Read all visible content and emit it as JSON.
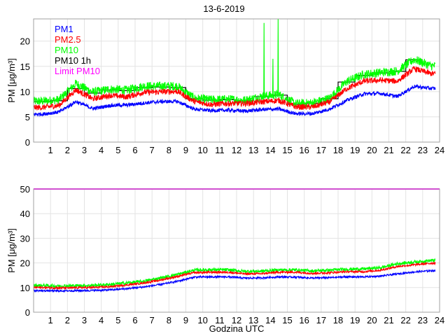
{
  "chart_data": [
    {
      "type": "line",
      "title": "13-6-2019",
      "xlabel": "",
      "ylabel": "PM [μg/m³]",
      "xlim": [
        0,
        24
      ],
      "ylim": [
        0,
        24.4
      ],
      "xticks": [
        1,
        2,
        3,
        4,
        5,
        6,
        7,
        8,
        9,
        10,
        11,
        12,
        13,
        14,
        15,
        16,
        17,
        18,
        19,
        20,
        21,
        22,
        23,
        24
      ],
      "yticks": [
        0,
        5,
        10,
        15,
        20
      ],
      "grid": true,
      "legend_position": "top-left",
      "legend": [
        {
          "label": "PM1",
          "color": "#0000ff"
        },
        {
          "label": "PM2.5",
          "color": "#ff0000"
        },
        {
          "label": "PM10",
          "color": "#00ff00"
        },
        {
          "label": "PM10 1h",
          "color": "#000000"
        },
        {
          "label": "Limit PM10",
          "color": "#ff00ff"
        }
      ],
      "x_hour_midpoints": [
        0.5,
        1.5,
        2.5,
        3.5,
        4.5,
        5.5,
        6.5,
        7.5,
        8.5,
        9.5,
        10.5,
        11.5,
        12.5,
        13.5,
        14.5,
        15.5,
        16.5,
        17.5,
        18.5,
        19.5,
        20.5,
        21.5,
        22.5,
        23.5
      ],
      "x_end": 23.75,
      "series": [
        {
          "name": "PM10",
          "color": "#00ff00",
          "noise": 1.1,
          "values": [
            8.0,
            8.3,
            11.5,
            9.8,
            10.4,
            10.2,
            11.0,
            11.0,
            11.0,
            8.6,
            8.3,
            8.4,
            8.2,
            9.0,
            9.3,
            7.5,
            7.7,
            8.6,
            11.9,
            13.3,
            13.7,
            14.0,
            16.3,
            15.0
          ],
          "spikes": [
            [
              13.62,
              23.6
            ],
            [
              14.45,
              24.4
            ],
            [
              14.15,
              16.5
            ]
          ]
        },
        {
          "name": "PM2.5",
          "color": "#ff0000",
          "noise": 0.7,
          "values": [
            6.8,
            7.2,
            10.3,
            8.5,
            9.2,
            8.9,
            9.8,
            9.9,
            10.0,
            8.0,
            7.4,
            7.6,
            7.6,
            7.9,
            8.2,
            6.9,
            6.9,
            7.9,
            10.5,
            12.0,
            12.2,
            12.0,
            14.5,
            13.5
          ]
        },
        {
          "name": "PM1",
          "color": "#0000ff",
          "noise": 0.45,
          "values": [
            5.5,
            5.9,
            8.0,
            6.6,
            7.2,
            7.3,
            7.7,
            8.0,
            8.0,
            6.5,
            6.2,
            6.3,
            6.1,
            6.4,
            6.5,
            5.6,
            5.6,
            6.5,
            8.2,
            9.5,
            9.6,
            9.0,
            11.0,
            10.6
          ]
        }
      ],
      "pm10_1h": {
        "name": "PM10 1h",
        "color": "#000000",
        "hourly_values": [
          8.0,
          8.2,
          10.6,
          9.7,
          10.3,
          10.2,
          10.8,
          10.9,
          10.8,
          8.6,
          8.3,
          8.4,
          8.2,
          9.0,
          9.3,
          7.5,
          7.7,
          8.6,
          11.9,
          13.2,
          13.7,
          14.0,
          16.3
        ]
      }
    },
    {
      "type": "line",
      "title": "",
      "xlabel": "Godzina UTC",
      "ylabel": "PM [μg/m³]",
      "xlim": [
        0,
        24
      ],
      "ylim": [
        0,
        50
      ],
      "xticks": [
        1,
        2,
        3,
        4,
        5,
        6,
        7,
        8,
        9,
        10,
        11,
        12,
        13,
        14,
        15,
        16,
        17,
        18,
        19,
        20,
        21,
        22,
        23,
        24
      ],
      "yticks": [
        0,
        10,
        20,
        30,
        40,
        50
      ],
      "grid": true,
      "x_hour_midpoints": [
        0.5,
        1.5,
        2.5,
        3.5,
        4.5,
        5.5,
        6.5,
        7.5,
        8.5,
        9.5,
        10.5,
        11.5,
        12.5,
        13.5,
        14.5,
        15.5,
        16.5,
        17.5,
        18.5,
        19.5,
        20.5,
        21.5,
        22.5,
        23.5
      ],
      "x_end": 23.75,
      "series": [
        {
          "name": "PM10",
          "color": "#00ff00",
          "noise": 0.8,
          "values": [
            10.8,
            10.6,
            10.7,
            10.8,
            11.2,
            11.8,
            12.5,
            13.8,
            15.3,
            17.0,
            17.2,
            17.1,
            16.5,
            16.6,
            17.1,
            17.1,
            16.7,
            17.0,
            17.4,
            17.5,
            18.0,
            19.6,
            20.3,
            20.9
          ]
        },
        {
          "name": "PM2.5",
          "color": "#ff0000",
          "noise": 0.5,
          "values": [
            10.0,
            9.8,
            9.9,
            10.0,
            10.3,
            11.0,
            11.8,
            13.0,
            14.5,
            16.0,
            16.2,
            16.2,
            15.5,
            15.6,
            16.2,
            16.2,
            15.7,
            16.0,
            16.4,
            16.4,
            17.0,
            18.5,
            19.2,
            19.8
          ]
        },
        {
          "name": "PM1",
          "color": "#0000ff",
          "noise": 0.45,
          "values": [
            8.7,
            8.6,
            8.7,
            8.8,
            9.0,
            9.5,
            10.2,
            11.2,
            12.5,
            14.2,
            14.3,
            14.3,
            13.8,
            13.9,
            14.3,
            14.2,
            13.8,
            14.0,
            14.3,
            14.3,
            14.6,
            15.5,
            16.3,
            16.8
          ]
        }
      ],
      "limit": {
        "name": "Limit PM10",
        "color": "#ff00ff",
        "value": 50
      }
    }
  ]
}
